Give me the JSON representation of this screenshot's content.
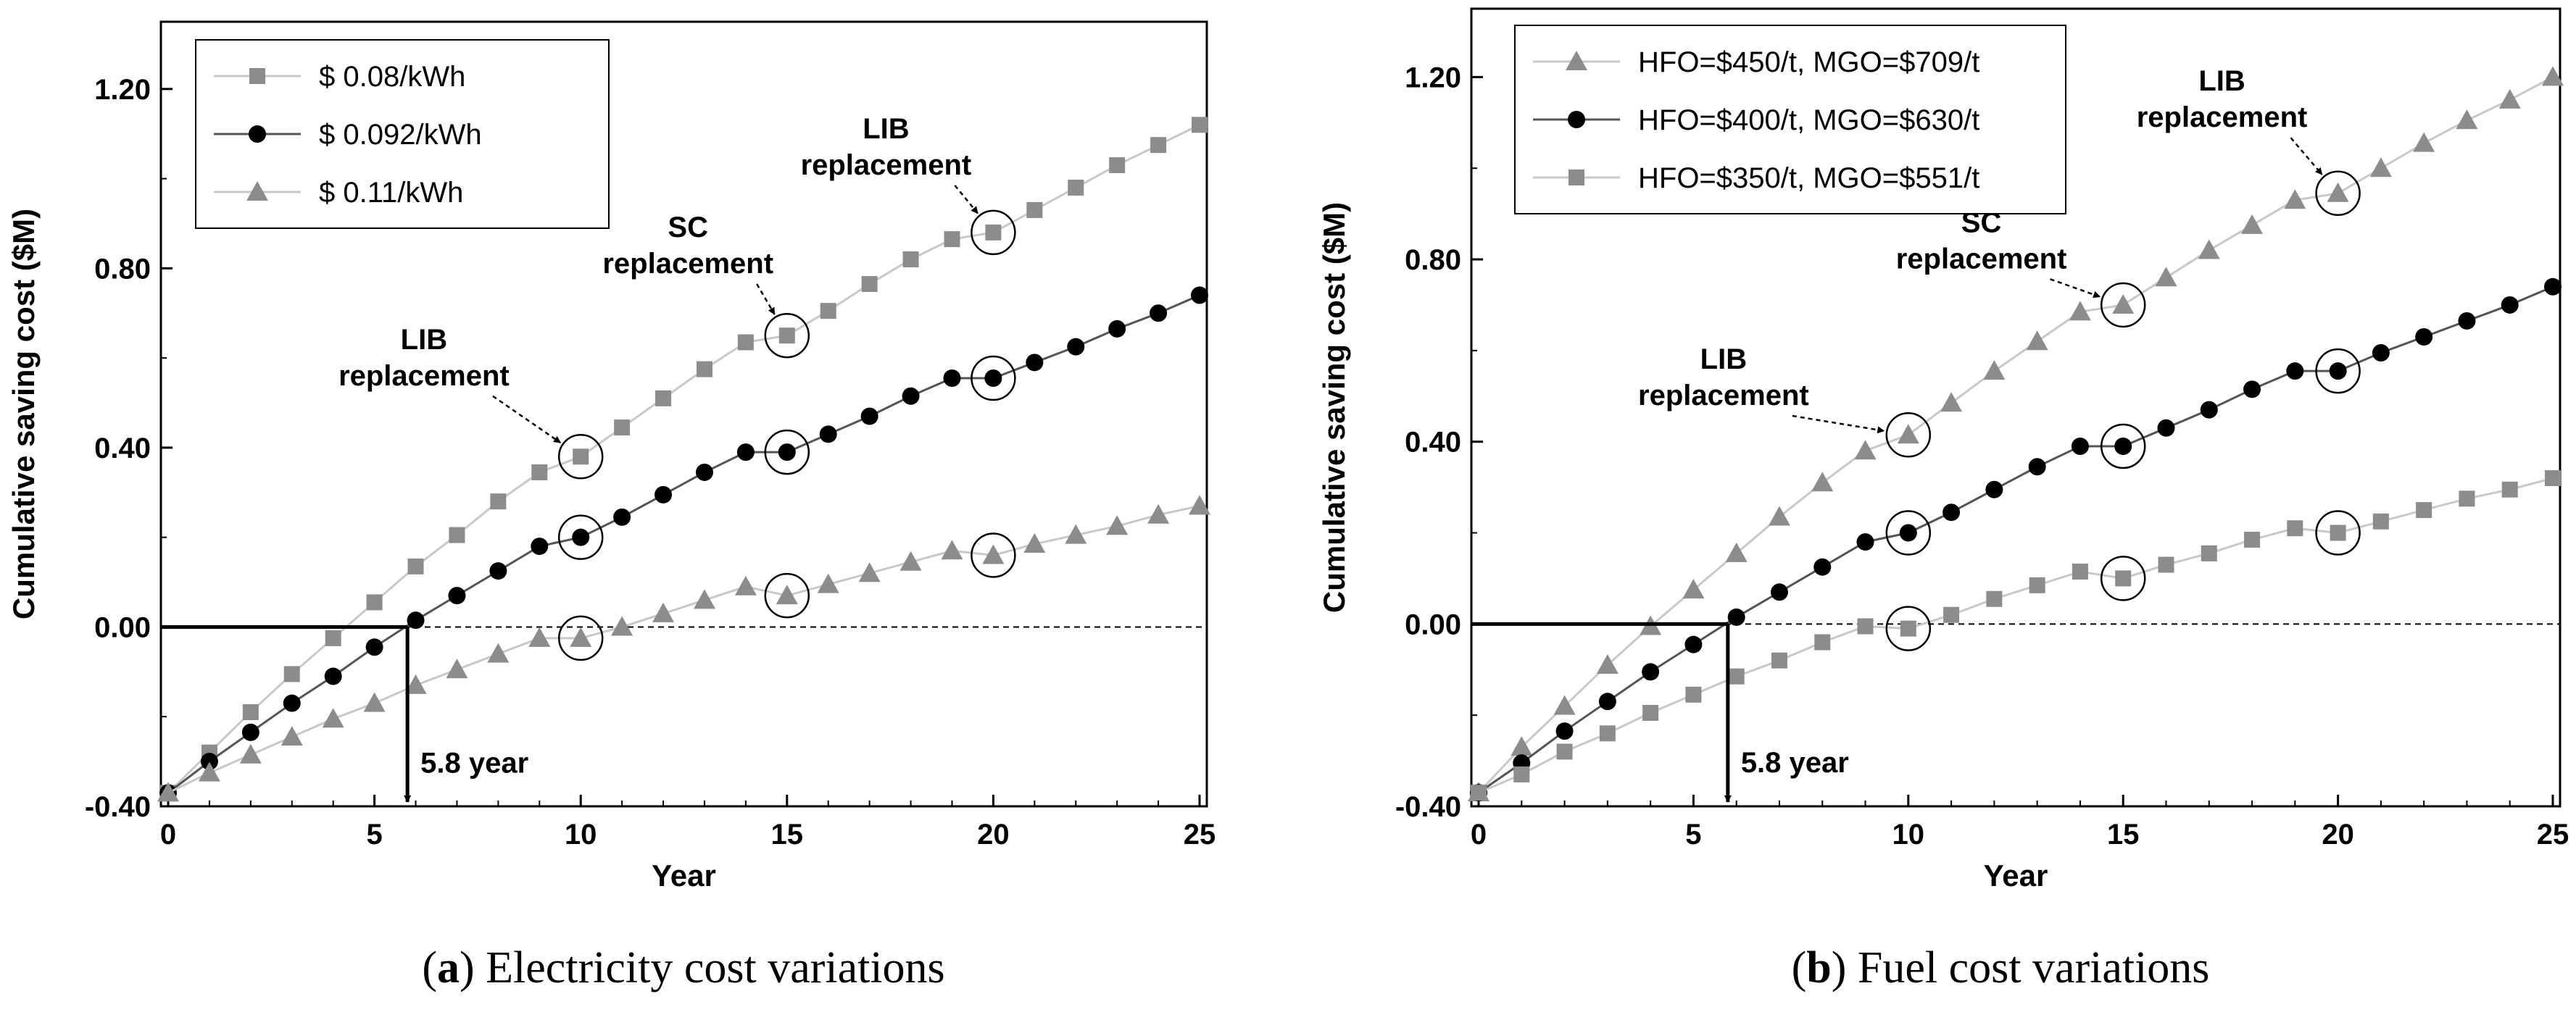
{
  "chart_data": [
    {
      "type": "line",
      "panel_label": "a",
      "caption": "Electricity cost variations",
      "xlabel": "Year",
      "ylabel": "Cumulative saving cost ($M)",
      "xlim": [
        0,
        25
      ],
      "ylim": [
        -0.4,
        1.35
      ],
      "x_ticks": [
        0,
        5,
        10,
        15,
        20,
        25
      ],
      "x_tick_labels": [
        "0",
        "5",
        "10",
        "15",
        "20",
        "25"
      ],
      "y_ticks": [
        -0.4,
        0,
        0.4,
        0.8,
        1.2
      ],
      "y_tick_labels": [
        "-0.40",
        "0.00",
        "0.40",
        "0.80",
        "1.20"
      ],
      "grid": false,
      "legend_position": "top-left",
      "x": [
        0,
        1,
        2,
        3,
        4,
        5,
        6,
        7,
        8,
        9,
        10,
        11,
        12,
        13,
        14,
        15,
        16,
        17,
        18,
        19,
        20,
        21,
        22,
        23,
        24,
        25
      ],
      "series": [
        {
          "name": "$ 0.08/kWh",
          "marker": "square",
          "color": "#8c8c8c",
          "line_color": "#c8c8c8",
          "values": [
            -0.37,
            -0.28,
            -0.19,
            -0.105,
            -0.025,
            0.055,
            0.135,
            0.205,
            0.28,
            0.345,
            0.38,
            0.445,
            0.51,
            0.575,
            0.635,
            0.65,
            0.705,
            0.765,
            0.82,
            0.865,
            0.88,
            0.93,
            0.98,
            1.03,
            1.075,
            1.12
          ]
        },
        {
          "name": "$ 0.092/kWh",
          "marker": "circle",
          "color": "#000000",
          "line_color": "#555555",
          "values": [
            -0.37,
            -0.3,
            -0.235,
            -0.17,
            -0.11,
            -0.045,
            0.015,
            0.07,
            0.125,
            0.18,
            0.2,
            0.245,
            0.295,
            0.345,
            0.39,
            0.39,
            0.43,
            0.47,
            0.515,
            0.555,
            0.555,
            0.59,
            0.625,
            0.665,
            0.7,
            0.74
          ]
        },
        {
          "name": "$ 0.11/kWh",
          "marker": "triangle",
          "color": "#8c8c8c",
          "line_color": "#c8c8c8",
          "values": [
            -0.37,
            -0.325,
            -0.285,
            -0.245,
            -0.205,
            -0.17,
            -0.13,
            -0.095,
            -0.06,
            -0.025,
            -0.025,
            0.0,
            0.03,
            0.06,
            0.09,
            0.07,
            0.095,
            0.12,
            0.145,
            0.17,
            0.16,
            0.185,
            0.205,
            0.225,
            0.25,
            0.27
          ]
        }
      ],
      "circled_points": [
        {
          "series": 0,
          "x": 10
        },
        {
          "series": 0,
          "x": 15
        },
        {
          "series": 0,
          "x": 20
        },
        {
          "series": 1,
          "x": 10
        },
        {
          "series": 1,
          "x": 15
        },
        {
          "series": 1,
          "x": 20
        },
        {
          "series": 2,
          "x": 10
        },
        {
          "series": 2,
          "x": 15
        },
        {
          "series": 2,
          "x": 20
        }
      ],
      "annotations": [
        {
          "lines": [
            "LIB",
            "replacement"
          ],
          "x": 6.2,
          "y": 0.62,
          "arrow_to": {
            "series": 0,
            "x": 10
          }
        },
        {
          "lines": [
            "SC",
            "replacement"
          ],
          "x": 12.6,
          "y": 0.87,
          "arrow_to": {
            "series": 0,
            "x": 15
          }
        },
        {
          "lines": [
            "LIB",
            "replacement"
          ],
          "x": 17.4,
          "y": 1.09,
          "arrow_to": {
            "series": 0,
            "x": 20
          }
        }
      ],
      "breakeven": {
        "x": 5.8,
        "y": 0,
        "label": "5.8 year"
      }
    },
    {
      "type": "line",
      "panel_label": "b",
      "caption": "Fuel cost variations",
      "xlabel": "Year",
      "ylabel": "Cumulative saving cost ($M)",
      "xlim": [
        0,
        25
      ],
      "ylim": [
        -0.4,
        1.35
      ],
      "x_ticks": [
        0,
        5,
        10,
        15,
        20,
        25
      ],
      "x_tick_labels": [
        "0",
        "5",
        "10",
        "15",
        "20",
        "25"
      ],
      "y_ticks": [
        -0.4,
        0,
        0.4,
        0.8,
        1.2
      ],
      "y_tick_labels": [
        "-0.40",
        "0.00",
        "0.40",
        "0.80",
        "1.20"
      ],
      "grid": false,
      "legend_position": "top-left",
      "x": [
        0,
        1,
        2,
        3,
        4,
        5,
        6,
        7,
        8,
        9,
        10,
        11,
        12,
        13,
        14,
        15,
        16,
        17,
        18,
        19,
        20,
        21,
        22,
        23,
        24,
        25
      ],
      "series": [
        {
          "name": "HFO=$450/t, MGO=$709/t",
          "marker": "triangle",
          "color": "#8c8c8c",
          "line_color": "#c8c8c8",
          "values": [
            -0.37,
            -0.27,
            -0.18,
            -0.09,
            -0.005,
            0.075,
            0.155,
            0.235,
            0.31,
            0.38,
            0.415,
            0.485,
            0.555,
            0.62,
            0.685,
            0.7,
            0.76,
            0.82,
            0.875,
            0.93,
            0.945,
            1.0,
            1.055,
            1.105,
            1.15,
            1.2
          ]
        },
        {
          "name": "HFO=$400/t, MGO=$630/t",
          "marker": "circle",
          "color": "#000000",
          "line_color": "#555555",
          "values": [
            -0.37,
            -0.305,
            -0.235,
            -0.17,
            -0.105,
            -0.045,
            0.015,
            0.07,
            0.125,
            0.18,
            0.2,
            0.245,
            0.295,
            0.345,
            0.39,
            0.39,
            0.43,
            0.47,
            0.515,
            0.555,
            0.555,
            0.595,
            0.63,
            0.665,
            0.7,
            0.74
          ]
        },
        {
          "name": "HFO=$350/t, MGO=$551/t",
          "marker": "square",
          "color": "#8c8c8c",
          "line_color": "#c8c8c8",
          "values": [
            -0.37,
            -0.33,
            -0.28,
            -0.24,
            -0.195,
            -0.155,
            -0.115,
            -0.08,
            -0.04,
            -0.005,
            -0.01,
            0.02,
            0.055,
            0.085,
            0.115,
            0.1,
            0.13,
            0.155,
            0.185,
            0.21,
            0.2,
            0.225,
            0.25,
            0.275,
            0.295,
            0.32
          ]
        }
      ],
      "circled_points": [
        {
          "series": 0,
          "x": 10
        },
        {
          "series": 0,
          "x": 15
        },
        {
          "series": 0,
          "x": 20
        },
        {
          "series": 1,
          "x": 10
        },
        {
          "series": 1,
          "x": 15
        },
        {
          "series": 1,
          "x": 20
        },
        {
          "series": 2,
          "x": 10
        },
        {
          "series": 2,
          "x": 15
        },
        {
          "series": 2,
          "x": 20
        }
      ],
      "annotations": [
        {
          "lines": [
            "LIB",
            "replacement"
          ],
          "x": 5.7,
          "y": 0.56,
          "arrow_to": {
            "series": 0,
            "x": 10
          }
        },
        {
          "lines": [
            "SC",
            "replacement"
          ],
          "x": 11.7,
          "y": 0.86,
          "arrow_to": {
            "series": 0,
            "x": 15
          }
        },
        {
          "lines": [
            "LIB",
            "replacement"
          ],
          "x": 17.3,
          "y": 1.17,
          "arrow_to": {
            "series": 0,
            "x": 20
          }
        }
      ],
      "breakeven": {
        "x": 5.8,
        "y": 0,
        "label": "5.8 year"
      }
    }
  ]
}
